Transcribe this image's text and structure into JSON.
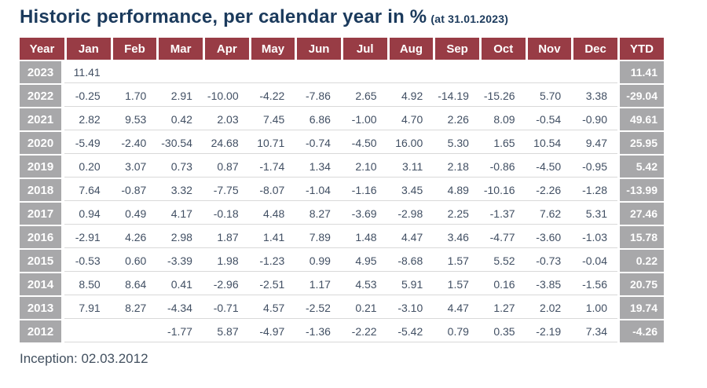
{
  "title": {
    "main": "Historic performance, per calendar year in %",
    "suffix": "(at 31.01.2023)"
  },
  "chart_data": {
    "type": "table",
    "columns": [
      "Year",
      "Jan",
      "Feb",
      "Mar",
      "Apr",
      "May",
      "Jun",
      "Jul",
      "Aug",
      "Sep",
      "Oct",
      "Nov",
      "Dec",
      "YTD"
    ],
    "rows": [
      {
        "year": "2023",
        "months": [
          11.41,
          null,
          null,
          null,
          null,
          null,
          null,
          null,
          null,
          null,
          null,
          null
        ],
        "ytd": 11.41
      },
      {
        "year": "2022",
        "months": [
          -0.25,
          1.7,
          2.91,
          -10.0,
          -4.22,
          -7.86,
          2.65,
          4.92,
          -14.19,
          -15.26,
          5.7,
          3.38
        ],
        "ytd": -29.04
      },
      {
        "year": "2021",
        "months": [
          2.82,
          9.53,
          0.42,
          2.03,
          7.45,
          6.86,
          -1.0,
          4.7,
          2.26,
          8.09,
          -0.54,
          -0.9
        ],
        "ytd": 49.61
      },
      {
        "year": "2020",
        "months": [
          -5.49,
          -2.4,
          -30.54,
          24.68,
          10.71,
          -0.74,
          -4.5,
          16.0,
          5.3,
          1.65,
          10.54,
          9.47
        ],
        "ytd": 25.95
      },
      {
        "year": "2019",
        "months": [
          0.2,
          3.07,
          0.73,
          0.87,
          -1.74,
          1.34,
          2.1,
          3.11,
          2.18,
          -0.86,
          -4.5,
          -0.95
        ],
        "ytd": 5.42
      },
      {
        "year": "2018",
        "months": [
          7.64,
          -0.87,
          3.32,
          -7.75,
          -8.07,
          -1.04,
          -1.16,
          3.45,
          4.89,
          -10.16,
          -2.26,
          -1.28
        ],
        "ytd": -13.99
      },
      {
        "year": "2017",
        "months": [
          0.94,
          0.49,
          4.17,
          -0.18,
          4.48,
          8.27,
          -3.69,
          -2.98,
          2.25,
          -1.37,
          7.62,
          5.31
        ],
        "ytd": 27.46
      },
      {
        "year": "2016",
        "months": [
          -2.91,
          4.26,
          2.98,
          1.87,
          1.41,
          7.89,
          1.48,
          4.47,
          3.46,
          -4.77,
          -3.6,
          -1.03
        ],
        "ytd": 15.78
      },
      {
        "year": "2015",
        "months": [
          -0.53,
          0.6,
          -3.39,
          1.98,
          -1.23,
          0.99,
          4.95,
          -8.68,
          1.57,
          5.52,
          -0.73,
          -0.04
        ],
        "ytd": 0.22
      },
      {
        "year": "2014",
        "months": [
          8.5,
          8.64,
          0.41,
          -2.96,
          -2.51,
          1.17,
          4.53,
          5.91,
          1.57,
          0.16,
          -3.85,
          -1.56
        ],
        "ytd": 20.75
      },
      {
        "year": "2013",
        "months": [
          7.91,
          8.27,
          -4.34,
          -0.71,
          4.57,
          -2.52,
          0.21,
          -3.1,
          4.47,
          1.27,
          2.02,
          1.0
        ],
        "ytd": 19.74
      },
      {
        "year": "2012",
        "months": [
          null,
          null,
          -1.77,
          5.87,
          -4.97,
          -1.36,
          -2.22,
          -5.42,
          0.79,
          0.35,
          -2.19,
          7.34
        ],
        "ytd": -4.26
      }
    ]
  },
  "footer": {
    "inception": "Inception: 02.03.2012"
  },
  "colors": {
    "header_bg": "#983c45",
    "year_bg": "#a8a8aa",
    "title_color": "#1b3a5c",
    "value_color": "#414f63",
    "divider_color": "#d9d9d9"
  }
}
